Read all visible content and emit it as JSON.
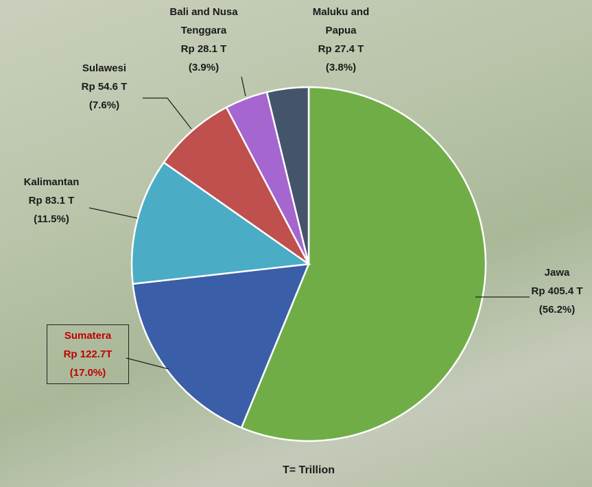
{
  "chart_data": {
    "type": "pie",
    "categories": [
      "Jawa",
      "Sumatera",
      "Kalimantan",
      "Sulawesi",
      "Bali and Nusa Tenggara",
      "Maluku and Papua"
    ],
    "values": [
      405.4,
      122.7,
      83.1,
      54.6,
      28.1,
      27.4
    ],
    "value_labels": [
      "Rp 405.4 T",
      "Rp 122.7T",
      "Rp 83.1 T",
      "Rp 54.6 T",
      "Rp 28.1 T",
      "Rp 27.4 T"
    ],
    "percent_labels": [
      "(56.2%)",
      "(17.0%)",
      "(11.5%)",
      "(7.6%)",
      "(3.9%)",
      "(3.8%)"
    ],
    "colors": [
      "#70ad47",
      "#3a5ea8",
      "#4bacc6",
      "#c0504d",
      "#a566d0",
      "#44546a"
    ],
    "note": "T= Trillion"
  }
}
